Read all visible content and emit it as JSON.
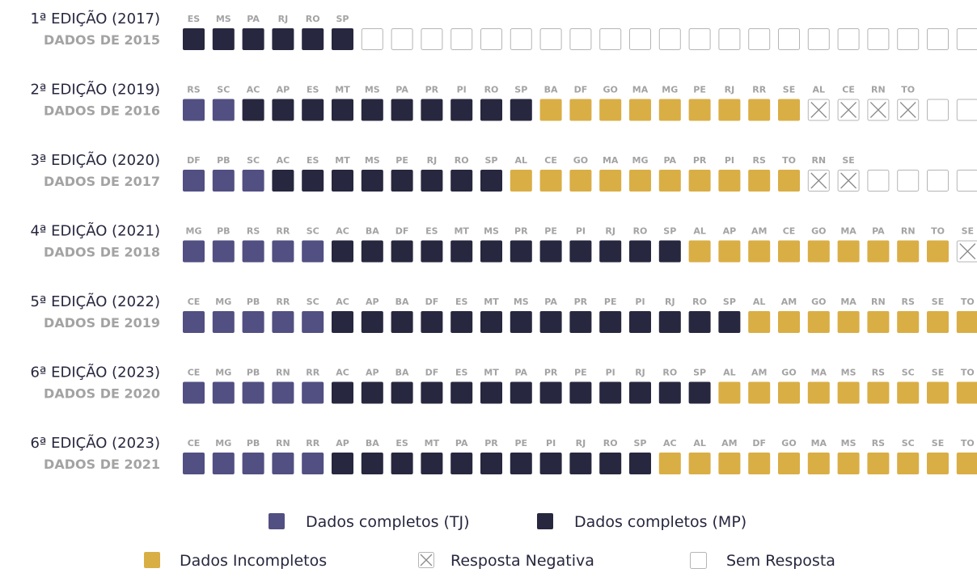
{
  "rows": [
    {
      "edition": "1ª EDIÇÃO (2017)",
      "data_year": "DADOS DE 2015",
      "tj": [],
      "mp": [
        "ES",
        "MS",
        "PA",
        "RJ",
        "RO",
        "SP"
      ],
      "incomplete": [],
      "negative": [],
      "blank": 21
    },
    {
      "edition": "2ª EDIÇÃO (2019)",
      "data_year": "DADOS DE 2016",
      "tj": [
        "RS",
        "SC"
      ],
      "mp": [
        "AC",
        "AP",
        "ES",
        "MT",
        "MS",
        "PA",
        "PR",
        "PI",
        "RO",
        "SP"
      ],
      "incomplete": [
        "BA",
        "DF",
        "GO",
        "MA",
        "MG",
        "PE",
        "RJ",
        "RR",
        "SE"
      ],
      "negative": [
        "AL",
        "CE",
        "RN",
        "TO"
      ],
      "blank": 2
    },
    {
      "edition": "3ª EDIÇÃO (2020)",
      "data_year": "DADOS DE 2017",
      "tj": [
        "DF",
        "PB",
        "SC"
      ],
      "mp": [
        "AC",
        "ES",
        "MT",
        "MS",
        "PE",
        "RJ",
        "RO",
        "SP"
      ],
      "incomplete": [
        "AL",
        "CE",
        "GO",
        "MA",
        "MG",
        "PA",
        "PR",
        "PI",
        "RS",
        "TO"
      ],
      "negative": [
        "RN",
        "SE"
      ],
      "blank": 4
    },
    {
      "edition": "4ª EDIÇÃO (2021)",
      "data_year": "DADOS DE 2018",
      "tj": [
        "MG",
        "PB",
        "RS",
        "RR",
        "SC"
      ],
      "mp": [
        "AC",
        "BA",
        "DF",
        "ES",
        "MT",
        "MS",
        "PR",
        "PE",
        "PI",
        "RJ",
        "RO",
        "SP"
      ],
      "incomplete": [
        "AL",
        "AP",
        "AM",
        "CE",
        "GO",
        "MA",
        "PA",
        "RN",
        "TO"
      ],
      "negative": [
        "SE"
      ],
      "blank": 0
    },
    {
      "edition": "5ª EDIÇÃO (2022)",
      "data_year": "DADOS DE 2019",
      "tj": [
        "CE",
        "MG",
        "PB",
        "RR",
        "SC"
      ],
      "mp": [
        "AC",
        "AP",
        "BA",
        "DF",
        "ES",
        "MT",
        "MS",
        "PA",
        "PR",
        "PE",
        "PI",
        "RJ",
        "RO",
        "SP"
      ],
      "incomplete": [
        "AL",
        "AM",
        "GO",
        "MA",
        "RN",
        "RS",
        "SE",
        "TO"
      ],
      "negative": [],
      "blank": 0
    },
    {
      "edition": "6ª EDIÇÃO (2023)",
      "data_year": "DADOS DE 2020",
      "tj": [
        "CE",
        "MG",
        "PB",
        "RN",
        "RR"
      ],
      "mp": [
        "AC",
        "AP",
        "BA",
        "DF",
        "ES",
        "MT",
        "PA",
        "PR",
        "PE",
        "PI",
        "RJ",
        "RO",
        "SP"
      ],
      "incomplete": [
        "AL",
        "AM",
        "GO",
        "MA",
        "MS",
        "RS",
        "SC",
        "SE",
        "TO"
      ],
      "negative": [],
      "blank": 0
    },
    {
      "edition": "6ª EDIÇÃO (2023)",
      "data_year": "DADOS DE 2021",
      "tj": [
        "CE",
        "MG",
        "PB",
        "RN",
        "RR"
      ],
      "mp": [
        "AP",
        "BA",
        "ES",
        "MT",
        "PA",
        "PR",
        "PE",
        "PI",
        "RJ",
        "RO",
        "SP"
      ],
      "incomplete": [
        "AC",
        "AL",
        "AM",
        "DF",
        "GO",
        "MA",
        "MS",
        "RS",
        "SC",
        "SE",
        "TO"
      ],
      "negative": [],
      "blank": 0
    }
  ],
  "colors": {
    "tj": "#524f82",
    "mp": "#27273f",
    "incomplete": "#d9ae45"
  },
  "legend": {
    "tj": "Dados completos (TJ)",
    "mp": "Dados completos (MP)",
    "incomplete": "Dados Incompletos",
    "negative": "Resposta Negativa",
    "blank": "Sem Resposta"
  }
}
